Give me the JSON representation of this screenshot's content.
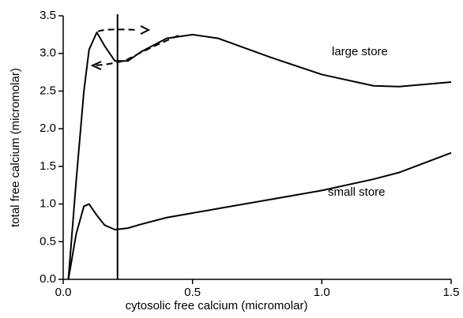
{
  "chart_data": {
    "type": "line",
    "x_label": "cytosolic free calcium (micromolar)",
    "y_label": "total free calcium (micromolar)",
    "x": [
      0.02,
      0.05,
      0.08,
      0.1,
      0.13,
      0.16,
      0.2,
      0.25,
      0.3,
      0.4,
      0.5,
      0.6,
      0.8,
      1.0,
      1.2,
      1.3,
      1.5
    ],
    "series": [
      {
        "name": "large store",
        "color": "#000000",
        "values": [
          0,
          1.3,
          2.5,
          3.05,
          3.28,
          3.1,
          2.9,
          2.9,
          3.02,
          3.2,
          3.25,
          3.2,
          2.95,
          2.72,
          2.57,
          2.56,
          2.62
        ]
      },
      {
        "name": "small store",
        "color": "#000000",
        "values": [
          0,
          0.6,
          0.97,
          1.0,
          0.85,
          0.72,
          0.66,
          0.68,
          0.73,
          0.82,
          0.88,
          0.94,
          1.06,
          1.18,
          1.33,
          1.42,
          1.68
        ]
      }
    ],
    "vline": 0.21,
    "xlim": [
      0,
      1.5
    ],
    "ylim": [
      0,
      3.5
    ],
    "xticks": [
      {
        "value": 0,
        "label": "0.0"
      },
      0.5,
      {
        "value": 1,
        "label": "1.0"
      },
      1.5
    ],
    "yticks": [
      {
        "value": 0,
        "label": "0.0"
      },
      0.5,
      {
        "value": 1,
        "label": "1.0"
      },
      1.5,
      {
        "value": 2,
        "label": "2.0"
      },
      2.5,
      {
        "value": 3,
        "label": "3.0"
      },
      3.5
    ]
  }
}
